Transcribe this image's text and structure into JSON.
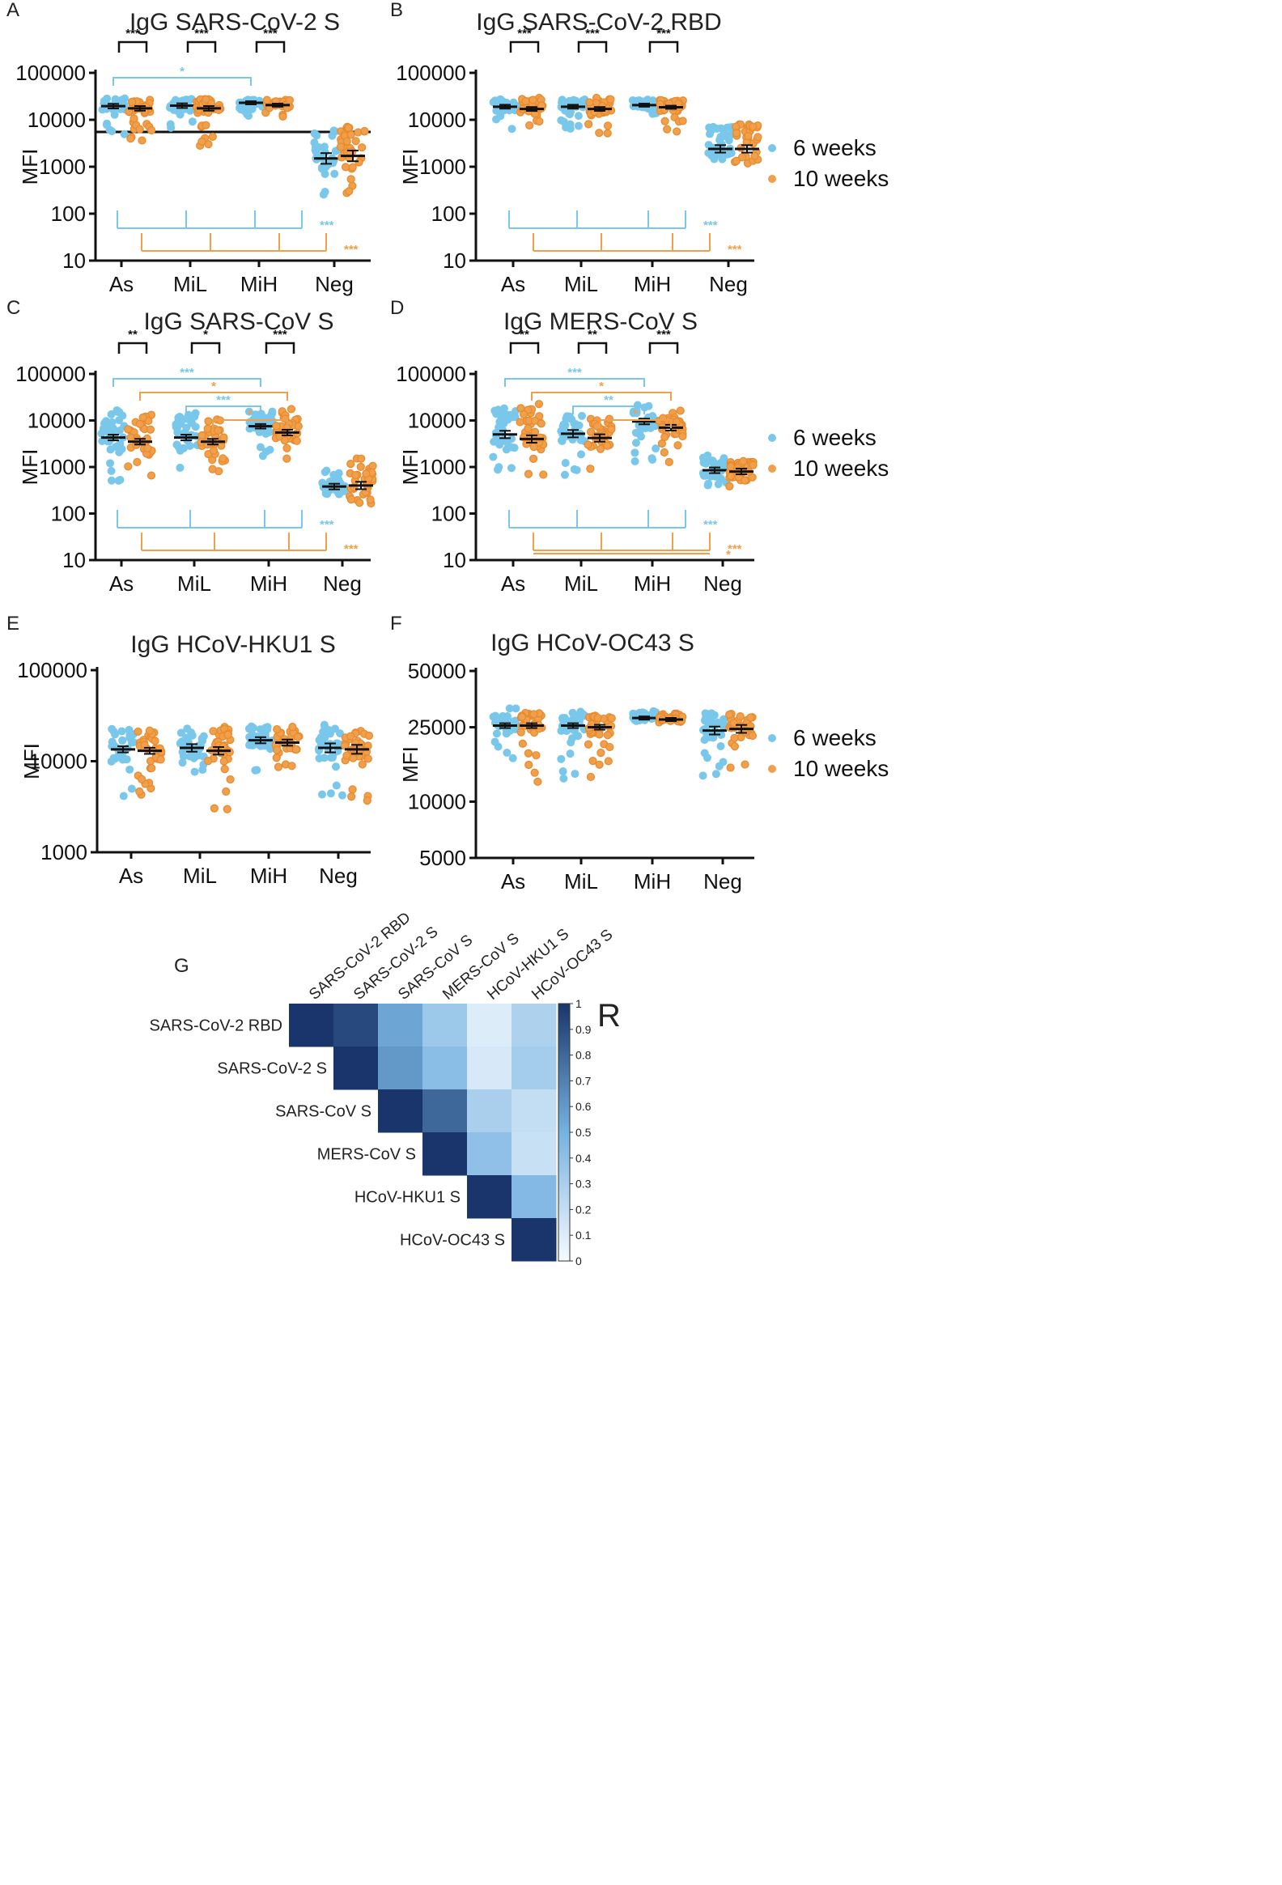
{
  "legend": {
    "series": [
      {
        "name": "6 weeks",
        "color": "#79c7ea"
      },
      {
        "name": "10 weeks",
        "color": "#f0a04b"
      }
    ]
  },
  "chart_data": [
    {
      "panel": "A",
      "type": "scatter",
      "title": "IgG SARS-CoV-2 S",
      "ylabel": "MFI",
      "yscale": "log",
      "ylim": [
        10,
        100000
      ],
      "yticks": [
        "10",
        "100",
        "1000",
        "10000",
        "100000"
      ],
      "categories": [
        "As",
        "MiL",
        "MiH",
        "Neg"
      ],
      "threshold": 5500,
      "series": [
        {
          "name": "6 weeks",
          "means": [
            19500,
            20000,
            23000,
            1500
          ],
          "sem": [
            1.12,
            1.12,
            1.08,
            1.3
          ],
          "lo": [
            2500,
            5000,
            11000,
            200
          ],
          "hi": [
            32000,
            30000,
            28000,
            8000
          ]
        },
        {
          "name": "10 weeks",
          "means": [
            17500,
            17500,
            20500,
            1700
          ],
          "sem": [
            1.12,
            1.12,
            1.08,
            1.3
          ],
          "lo": [
            2500,
            2500,
            10000,
            250
          ],
          "hi": [
            30000,
            30000,
            28000,
            10000
          ]
        }
      ],
      "pair_sig": [
        "***",
        "***",
        "***",
        ""
      ],
      "top_brackets": [
        {
          "from": 0,
          "to": 2,
          "series": 0,
          "label": "*"
        }
      ],
      "bottom_brackets": [
        {
          "series": 0,
          "label": "***"
        },
        {
          "series": 1,
          "label": "***"
        }
      ]
    },
    {
      "panel": "B",
      "type": "scatter",
      "title": "IgG SARS-CoV-2 RBD",
      "ylabel": "MFI",
      "yscale": "log",
      "ylim": [
        10,
        100000
      ],
      "yticks": [
        "10",
        "100",
        "1000",
        "10000",
        "100000"
      ],
      "categories": [
        "As",
        "MiL",
        "MiH",
        "Neg"
      ],
      "series": [
        {
          "name": "6 weeks",
          "means": [
            19000,
            19000,
            20500,
            2400
          ],
          "sem": [
            1.1,
            1.1,
            1.08,
            1.2
          ],
          "lo": [
            5000,
            6000,
            10000,
            800
          ],
          "hi": [
            30000,
            30000,
            28000,
            8500
          ]
        },
        {
          "name": "10 weeks",
          "means": [
            17000,
            17000,
            18500,
            2400
          ],
          "sem": [
            1.1,
            1.1,
            1.08,
            1.2
          ],
          "lo": [
            5000,
            4000,
            5000,
            1000
          ],
          "hi": [
            30000,
            30000,
            28000,
            10000
          ]
        }
      ],
      "pair_sig": [
        "***",
        "***",
        "***",
        ""
      ],
      "top_brackets": [],
      "bottom_brackets": [
        {
          "series": 0,
          "label": "***"
        },
        {
          "series": 1,
          "label": "***"
        }
      ]
    },
    {
      "panel": "C",
      "type": "scatter",
      "title": "IgG SARS-CoV S",
      "ylabel": "MFI",
      "yscale": "log",
      "ylim": [
        10,
        100000
      ],
      "yticks": [
        "10",
        "100",
        "1000",
        "10000",
        "100000"
      ],
      "categories": [
        "As",
        "MiL",
        "MiH",
        "Neg"
      ],
      "series": [
        {
          "name": "6 weeks",
          "means": [
            4300,
            4300,
            7500,
            380
          ],
          "sem": [
            1.15,
            1.15,
            1.12,
            1.15
          ],
          "lo": [
            500,
            800,
            1500,
            130
          ],
          "hi": [
            20000,
            15000,
            18000,
            900
          ]
        },
        {
          "name": "10 weeks",
          "means": [
            3500,
            3500,
            5500,
            400
          ],
          "sem": [
            1.15,
            1.15,
            1.15,
            1.2
          ],
          "lo": [
            500,
            800,
            1500,
            150
          ],
          "hi": [
            15000,
            15000,
            18000,
            2000
          ]
        }
      ],
      "pair_sig": [
        "**",
        "*",
        "***",
        ""
      ],
      "top_brackets": [
        {
          "from": 0,
          "to": 2,
          "series": 0,
          "label": "***"
        },
        {
          "from": 0,
          "to": 2,
          "series": 1,
          "label": "*"
        },
        {
          "from": 1,
          "to": 2,
          "series": 0,
          "label": "***"
        },
        {
          "from": 1,
          "to": 2,
          "series": 1,
          "label": "*"
        }
      ],
      "bottom_brackets": [
        {
          "series": 0,
          "label": "***"
        },
        {
          "series": 1,
          "label": "***"
        }
      ]
    },
    {
      "panel": "D",
      "type": "scatter",
      "title": "IgG MERS-CoV S",
      "ylabel": "MFI",
      "yscale": "log",
      "ylim": [
        10,
        100000
      ],
      "yticks": [
        "10",
        "100",
        "1000",
        "10000",
        "100000"
      ],
      "categories": [
        "As",
        "MiL",
        "MiH",
        "Neg"
      ],
      "series": [
        {
          "name": "6 weeks",
          "means": [
            5000,
            5200,
            9500,
            850
          ],
          "sem": [
            1.2,
            1.2,
            1.15,
            1.15
          ],
          "lo": [
            600,
            600,
            1200,
            400
          ],
          "hi": [
            25000,
            15000,
            22000,
            1800
          ]
        },
        {
          "name": "10 weeks",
          "means": [
            4000,
            4200,
            7000,
            800
          ],
          "sem": [
            1.2,
            1.2,
            1.15,
            1.15
          ],
          "lo": [
            500,
            700,
            1000,
            350
          ],
          "hi": [
            25000,
            15000,
            20000,
            1700
          ]
        }
      ],
      "pair_sig": [
        "**",
        "**",
        "***",
        ""
      ],
      "top_brackets": [
        {
          "from": 0,
          "to": 2,
          "series": 0,
          "label": "***"
        },
        {
          "from": 0,
          "to": 2,
          "series": 1,
          "label": "*"
        },
        {
          "from": 1,
          "to": 2,
          "series": 0,
          "label": "**"
        },
        {
          "from": 1,
          "to": 2,
          "series": 1,
          "label": "*"
        }
      ],
      "bottom_brackets": [
        {
          "series": 0,
          "label": "***"
        },
        {
          "series": 1,
          "label": "***"
        },
        {
          "series": 1,
          "label": "*"
        }
      ]
    },
    {
      "panel": "E",
      "type": "scatter",
      "title": "IgG HCoV-HKU1 S",
      "ylabel": "MFI",
      "yscale": "log",
      "ylim": [
        1000,
        100000
      ],
      "yticks": [
        "1000",
        "10000",
        "100000"
      ],
      "categories": [
        "As",
        "MiL",
        "MiH",
        "Neg"
      ],
      "series": [
        {
          "name": "6 weeks",
          "means": [
            13500,
            14000,
            17000,
            14000
          ],
          "sem": [
            1.08,
            1.1,
            1.08,
            1.12
          ],
          "lo": [
            2800,
            4500,
            7500,
            3300
          ],
          "hi": [
            25000,
            25000,
            26000,
            27000
          ]
        },
        {
          "name": "10 weeks",
          "means": [
            13000,
            13000,
            16000,
            13500
          ],
          "sem": [
            1.08,
            1.1,
            1.08,
            1.12
          ],
          "lo": [
            3400,
            2800,
            8000,
            3200
          ],
          "hi": [
            25000,
            25000,
            25000,
            25000
          ]
        }
      ],
      "pair_sig": [
        "",
        "",
        "",
        ""
      ],
      "top_brackets": [],
      "bottom_brackets": []
    },
    {
      "panel": "F",
      "type": "scatter",
      "title": "IgG HCoV-OC43 S",
      "ylabel": "MFI",
      "yscale": "log",
      "ylim": [
        5000,
        50000
      ],
      "yticks": [
        "5000",
        "10000",
        "25000",
        "50000"
      ],
      "categories": [
        "As",
        "MiL",
        "MiH",
        "Neg"
      ],
      "series": [
        {
          "name": "6 weeks",
          "means": [
            25500,
            25500,
            28000,
            24000
          ],
          "sem": [
            1.03,
            1.03,
            1.02,
            1.05
          ],
          "lo": [
            16000,
            13000,
            27000,
            10000
          ],
          "hi": [
            32000,
            31000,
            31000,
            31000
          ]
        },
        {
          "name": "10 weeks",
          "means": [
            25500,
            25000,
            27500,
            24500
          ],
          "sem": [
            1.03,
            1.03,
            1.02,
            1.05
          ],
          "lo": [
            12500,
            12000,
            26000,
            10500
          ],
          "hi": [
            31000,
            31000,
            30000,
            31000
          ]
        }
      ],
      "pair_sig": [
        "",
        "",
        "",
        ""
      ],
      "top_brackets": [],
      "bottom_brackets": []
    },
    {
      "panel": "G",
      "type": "heatmap",
      "labels": [
        "SARS-CoV-2 RBD",
        "SARS-CoV-2 S",
        "SARS-CoV S",
        "MERS-CoV S",
        "HCoV-HKU1 S",
        "HCoV-OC43 S"
      ],
      "values": [
        [
          1,
          0.92,
          0.55,
          0.35,
          0.1,
          0.28
        ],
        [
          null,
          1,
          0.6,
          0.42,
          0.12,
          0.32
        ],
        [
          null,
          null,
          1,
          0.8,
          0.3,
          0.2
        ],
        [
          null,
          null,
          null,
          1,
          0.4,
          0.18
        ],
        [
          null,
          null,
          null,
          null,
          1,
          0.45
        ],
        [
          null,
          null,
          null,
          null,
          null,
          1
        ]
      ],
      "colorbar": {
        "title": "R",
        "ticks": [
          "0",
          "0.1",
          "0.2",
          "0.3",
          "0.4",
          "0.5",
          "0.6",
          "0.7",
          "0.8",
          "0.9",
          "1"
        ],
        "range": [
          0,
          1
        ]
      }
    }
  ]
}
